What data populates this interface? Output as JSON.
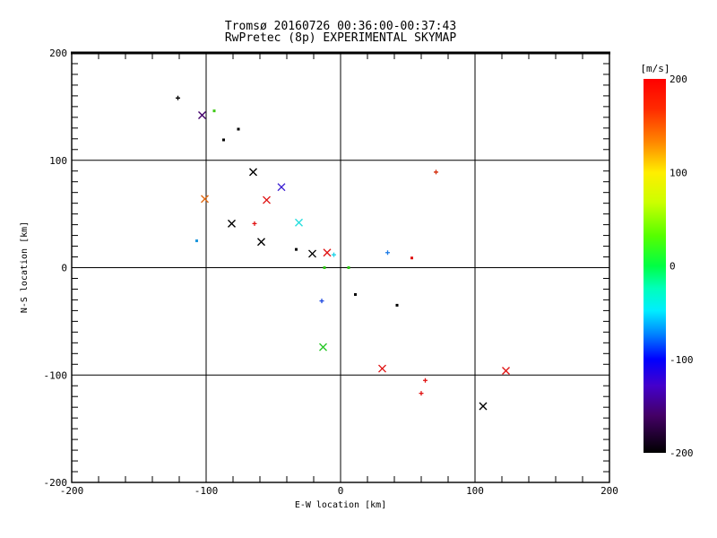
{
  "chart_data": {
    "type": "scatter",
    "title": "Tromsø 20160726 00:36:00-00:37:43",
    "subtitle": "RwPretec (8p) EXPERIMENTAL SKYMAP",
    "xlabel": "E-W location [km]",
    "ylabel": "N-S location [km]",
    "xlim": [
      -200,
      200
    ],
    "ylim": [
      -200,
      200
    ],
    "x_major_ticks": [
      -200,
      -100,
      0,
      100,
      200
    ],
    "y_major_ticks": [
      -200,
      -100,
      0,
      100,
      200
    ],
    "x_minor_step": 20,
    "y_minor_step": 10,
    "grid": true,
    "axis_color": "#000000",
    "background_color": "#ffffff",
    "points": [
      {
        "x": -121,
        "y": 158,
        "marker": "plus",
        "color": "#000000",
        "velocity_ms_est": -195
      },
      {
        "x": -103,
        "y": 142,
        "marker": "x",
        "color": "#42006a",
        "velocity_ms_est": -160
      },
      {
        "x": -94,
        "y": 146,
        "marker": "dot",
        "color": "#3ec814",
        "velocity_ms_est": 35
      },
      {
        "x": -87,
        "y": 119,
        "marker": "dot",
        "color": "#000000",
        "velocity_ms_est": -195
      },
      {
        "x": -76,
        "y": 129,
        "marker": "dot",
        "color": "#000000",
        "velocity_ms_est": -195
      },
      {
        "x": -65,
        "y": 89,
        "marker": "x",
        "color": "#000000",
        "velocity_ms_est": -195
      },
      {
        "x": -44,
        "y": 75,
        "marker": "x",
        "color": "#3a1ed2",
        "velocity_ms_est": -125
      },
      {
        "x": -101,
        "y": 64,
        "marker": "x",
        "color": "#e06a14",
        "velocity_ms_est": 155
      },
      {
        "x": -55,
        "y": 63,
        "marker": "x",
        "color": "#e01414",
        "velocity_ms_est": 195
      },
      {
        "x": -81,
        "y": 41,
        "marker": "x",
        "color": "#000000",
        "velocity_ms_est": -195
      },
      {
        "x": -64,
        "y": 41,
        "marker": "plus",
        "color": "#e01010",
        "velocity_ms_est": 195
      },
      {
        "x": -31,
        "y": 42,
        "marker": "x",
        "color": "#28dede",
        "velocity_ms_est": -30
      },
      {
        "x": -107,
        "y": 25,
        "marker": "dot",
        "color": "#1b96dc",
        "velocity_ms_est": -75
      },
      {
        "x": -59,
        "y": 24,
        "marker": "x",
        "color": "#000000",
        "velocity_ms_est": -195
      },
      {
        "x": -33,
        "y": 17,
        "marker": "dot",
        "color": "#000000",
        "velocity_ms_est": -195
      },
      {
        "x": -21,
        "y": 13,
        "marker": "x",
        "color": "#000000",
        "velocity_ms_est": -195
      },
      {
        "x": -10,
        "y": 14,
        "marker": "x",
        "color": "#e01414",
        "velocity_ms_est": 195
      },
      {
        "x": -5,
        "y": 12,
        "marker": "plus",
        "color": "#16d2e6",
        "velocity_ms_est": -35
      },
      {
        "x": -12,
        "y": 0,
        "marker": "dot",
        "color": "#2ec814",
        "velocity_ms_est": 30
      },
      {
        "x": 6,
        "y": 0,
        "marker": "dot",
        "color": "#2ec814",
        "velocity_ms_est": 30
      },
      {
        "x": 71,
        "y": 89,
        "marker": "plus",
        "color": "#d42a08",
        "velocity_ms_est": 185
      },
      {
        "x": 35,
        "y": 14,
        "marker": "plus",
        "color": "#1a7ae6",
        "velocity_ms_est": -85
      },
      {
        "x": 53,
        "y": 9,
        "marker": "dot",
        "color": "#e01010",
        "velocity_ms_est": 195
      },
      {
        "x": 11,
        "y": -25,
        "marker": "dot",
        "color": "#000000",
        "velocity_ms_est": -195
      },
      {
        "x": -14,
        "y": -31,
        "marker": "plus",
        "color": "#1a46e0",
        "velocity_ms_est": -105
      },
      {
        "x": 42,
        "y": -35,
        "marker": "dot",
        "color": "#000000",
        "velocity_ms_est": -195
      },
      {
        "x": -13,
        "y": -74,
        "marker": "x",
        "color": "#28c828",
        "velocity_ms_est": 25
      },
      {
        "x": 31,
        "y": -94,
        "marker": "x",
        "color": "#e01414",
        "velocity_ms_est": 195
      },
      {
        "x": 63,
        "y": -105,
        "marker": "plus",
        "color": "#e01010",
        "velocity_ms_est": 195
      },
      {
        "x": 60,
        "y": -117,
        "marker": "plus",
        "color": "#e01010",
        "velocity_ms_est": 195
      },
      {
        "x": 123,
        "y": -96,
        "marker": "x",
        "color": "#e01414",
        "velocity_ms_est": 195
      },
      {
        "x": 106,
        "y": -129,
        "marker": "x",
        "color": "#000000",
        "velocity_ms_est": -195
      }
    ],
    "colorbar": {
      "label": "[m/s]",
      "max": 200,
      "min": -200,
      "ticks": [
        200,
        100,
        0,
        -100,
        -200
      ],
      "stops": [
        {
          "pos": 0.0,
          "color": "#ff0000"
        },
        {
          "pos": 0.08,
          "color": "#ff2a00"
        },
        {
          "pos": 0.17,
          "color": "#ff8800"
        },
        {
          "pos": 0.25,
          "color": "#ffee00"
        },
        {
          "pos": 0.33,
          "color": "#ccff00"
        },
        {
          "pos": 0.42,
          "color": "#55ff00"
        },
        {
          "pos": 0.5,
          "color": "#00ff44"
        },
        {
          "pos": 0.56,
          "color": "#00ffbb"
        },
        {
          "pos": 0.62,
          "color": "#00eeff"
        },
        {
          "pos": 0.68,
          "color": "#0088ff"
        },
        {
          "pos": 0.75,
          "color": "#0000ff"
        },
        {
          "pos": 0.82,
          "color": "#4400cc"
        },
        {
          "pos": 0.9,
          "color": "#440066"
        },
        {
          "pos": 1.0,
          "color": "#000000"
        }
      ]
    }
  }
}
